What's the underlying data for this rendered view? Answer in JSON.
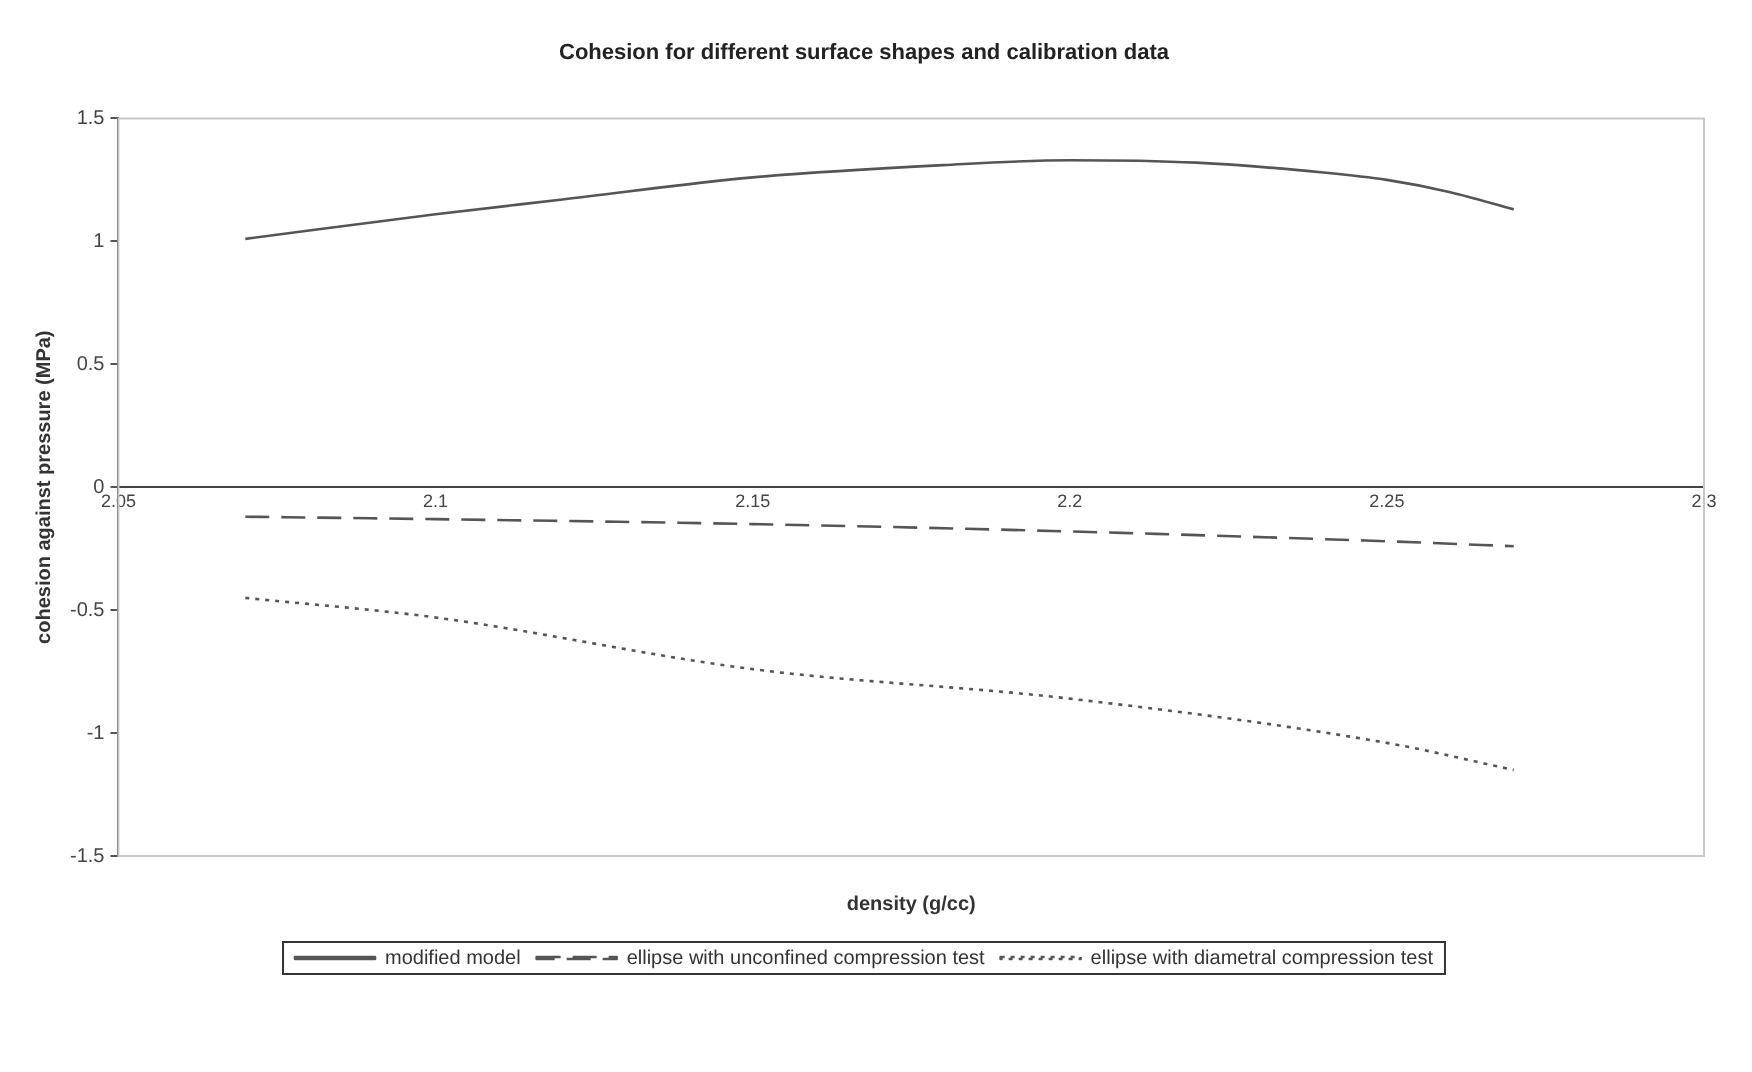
{
  "chart_data": {
    "type": "line",
    "title": "Cohesion for different surface shapes and calibration data",
    "xlabel": "density (g/cc)",
    "ylabel": "cohesion against pressure (MPa)",
    "xlim": [
      2.05,
      2.3
    ],
    "xticks": [
      2.05,
      2.1,
      2.15,
      2.2,
      2.25,
      2.3
    ],
    "ylim": [
      -1.5,
      1.5
    ],
    "yticks": [
      -1.5,
      -1,
      -0.5,
      0,
      0.5,
      1,
      1.5
    ],
    "grid": false,
    "legend": "bottom",
    "marker": "none",
    "series": [
      {
        "name": "modified model",
        "color": "#555555",
        "line_style": "solid",
        "x": [
          2.07,
          2.1,
          2.12,
          2.15,
          2.18,
          2.2,
          2.22,
          2.24,
          2.25,
          2.26,
          2.27
        ],
        "values": [
          1.01,
          1.11,
          1.17,
          1.26,
          1.31,
          1.33,
          1.32,
          1.28,
          1.25,
          1.2,
          1.13
        ]
      },
      {
        "name": "ellipse with unconfined compression test",
        "color": "#555555",
        "line_style": "dashed",
        "x": [
          2.07,
          2.1,
          2.15,
          2.2,
          2.25,
          2.27
        ],
        "values": [
          -0.12,
          -0.13,
          -0.15,
          -0.18,
          -0.22,
          -0.24
        ]
      },
      {
        "name": "ellipse with diametral compression test",
        "color": "#555555",
        "line_style": "dotted",
        "x": [
          2.07,
          2.1,
          2.15,
          2.2,
          2.25,
          2.27
        ],
        "values": [
          -0.45,
          -0.53,
          -0.74,
          -0.86,
          -1.04,
          -1.15
        ]
      }
    ]
  }
}
